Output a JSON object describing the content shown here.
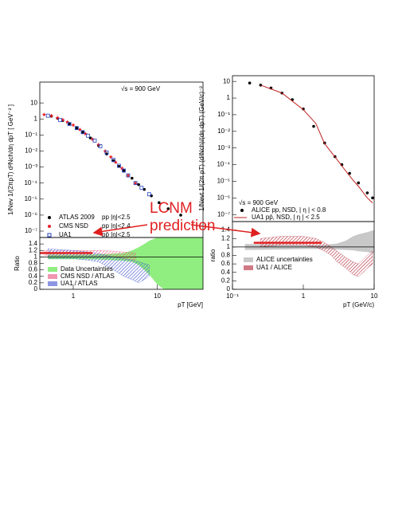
{
  "annotation": {
    "lines": [
      "LCNM",
      "prediction"
    ]
  },
  "chart_data": [
    {
      "type": "scatter",
      "xlog": true,
      "ylog": true,
      "xlim": [
        0.4,
        35
      ],
      "ylim": [
        4e-08,
        200
      ],
      "yticks": [
        10,
        1,
        {
          "value": 0.1,
          "label": "10⁻¹"
        },
        {
          "value": 0.01,
          "label": "10⁻²"
        },
        {
          "value": 0.001,
          "label": "10⁻³"
        },
        {
          "value": 0.0001,
          "label": "10⁻⁴"
        },
        {
          "value": 1e-05,
          "label": "10⁻⁵"
        },
        {
          "value": 1e-06,
          "label": "10⁻⁶"
        },
        {
          "value": 1e-07,
          "label": "10⁻⁷"
        }
      ],
      "ylabel": "1/Nev 1/(2πpT) d²Nch/dη dpT [ GeV⁻² ]",
      "note": "√s = 900 GeV",
      "series": [
        {
          "name": "ATLAS 2009",
          "selection": "pp |η|<2.5",
          "color": "#000000",
          "marker": "circle",
          "x": [
            0.55,
            0.65,
            0.75,
            0.9,
            1.1,
            1.3,
            1.6,
            2.0,
            2.5,
            3.0,
            3.5,
            4.0,
            5.0,
            6.0,
            7.0,
            8.5,
            10.5,
            13.5,
            19
          ],
          "values": [
            1.5,
            1.1,
            0.8,
            0.5,
            0.27,
            0.15,
            0.065,
            0.022,
            0.0065,
            0.0025,
            0.0011,
            0.0006,
            0.0002,
            8e-05,
            4e-05,
            1.6e-05,
            6e-06,
            2.5e-06,
            1e-06
          ]
        },
        {
          "name": "CMS NSD",
          "selection": "pp |η|<2.4",
          "color": "#e8202a",
          "marker": "star",
          "x": [
            0.45,
            0.55,
            0.65,
            0.75,
            0.85,
            1.0,
            1.2,
            1.4,
            1.7,
            2.0,
            2.4,
            2.8,
            3.2,
            3.8,
            4.5,
            5.5
          ],
          "values": [
            1.9,
            1.6,
            1.2,
            0.9,
            0.65,
            0.42,
            0.22,
            0.12,
            0.055,
            0.025,
            0.01,
            0.0043,
            0.002,
            0.00085,
            0.0003,
            0.0001
          ]
        },
        {
          "name": "UA1",
          "selection": "pp̄ |η|<2.5",
          "color": "#2040c0",
          "marker": "square",
          "x": [
            0.5,
            0.7,
            0.9,
            1.1,
            1.3,
            1.5,
            1.8,
            2.1,
            2.5,
            3.0,
            3.5,
            4.0,
            4.5,
            5.5,
            6.5,
            8.0
          ],
          "values": [
            1.6,
            0.85,
            0.48,
            0.27,
            0.15,
            0.09,
            0.045,
            0.02,
            0.008,
            0.0028,
            0.0012,
            0.0006,
            0.0003,
            0.0001,
            5e-05,
            2e-05
          ]
        }
      ]
    },
    {
      "type": "band",
      "xlog": true,
      "xlim": [
        0.4,
        35
      ],
      "ylim": [
        0,
        1.6
      ],
      "xticks": [
        1,
        10
      ],
      "yticks": [
        0,
        0.2,
        0.4,
        0.6,
        0.8,
        1,
        1.2,
        1.4
      ],
      "ylabel": "Ratio",
      "xlabel": "pT [GeV]",
      "reference_line": 1,
      "series": [
        {
          "name": "Data Uncertainties",
          "color": "#90ee80",
          "hatch": false,
          "x": [
            0.5,
            1,
            2,
            3,
            4,
            5,
            6,
            7,
            8,
            9,
            10,
            12,
            20,
            35
          ],
          "lower": [
            0.93,
            0.93,
            0.92,
            0.9,
            0.88,
            0.85,
            0.75,
            0.6,
            0.45,
            0.3,
            0.15,
            0,
            0,
            0
          ],
          "upper": [
            1.07,
            1.07,
            1.08,
            1.1,
            1.12,
            1.2,
            1.3,
            1.4,
            1.5,
            1.55,
            1.6,
            1.6,
            1.6,
            1.6
          ]
        },
        {
          "name": "CMS NSD / ATLAS",
          "color": "#e8507a",
          "hatch": true,
          "x": [
            0.45,
            1,
            2,
            3,
            4,
            5.5
          ],
          "lower": [
            1.05,
            1.05,
            1.03,
            1.0,
            0.95,
            0.9
          ],
          "upper": [
            1.2,
            1.2,
            1.2,
            1.18,
            1.15,
            1.12
          ]
        },
        {
          "name": "UA1 / ATLAS",
          "color": "#4050d0",
          "hatch": true,
          "x": [
            0.5,
            1,
            1.5,
            2,
            3,
            4,
            5,
            6,
            7,
            8
          ],
          "lower": [
            0.95,
            0.95,
            0.9,
            0.85,
            0.6,
            0.4,
            0.3,
            0.2,
            0.3,
            0.4
          ],
          "upper": [
            1.25,
            1.2,
            1.15,
            1.1,
            1.0,
            0.95,
            0.9,
            0.85,
            0.8,
            0.75
          ]
        }
      ],
      "prediction": {
        "color": "#e02020",
        "x": [
          0.4,
          1.7
        ],
        "values": [
          1.12,
          1.12
        ]
      }
    },
    {
      "type": "scatter",
      "xlog": true,
      "ylog": true,
      "xlim": [
        0.1,
        10
      ],
      "ylim": [
        3.8e-08,
        22
      ],
      "yticks": [
        10,
        1,
        {
          "value": 0.1,
          "label": "10⁻¹"
        },
        {
          "value": 0.01,
          "label": "10⁻²"
        },
        {
          "value": 0.001,
          "label": "10⁻³"
        },
        {
          "value": 0.0001,
          "label": "10⁻⁴"
        },
        {
          "value": 1e-05,
          "label": "10⁻⁵"
        },
        {
          "value": 1e-06,
          "label": "10⁻⁶"
        },
        {
          "value": 1e-07,
          "label": "10⁻⁷"
        }
      ],
      "ylabel": "1/Nevt 1/(2π pT) (d²Nch)/(dη dpT) (GeV/c)⁻²",
      "note": "√s = 900 GeV",
      "series": [
        {
          "name": "ALICE pp, NSD, | η | < 0.8",
          "color": "#000000",
          "marker": "circle",
          "x": [
            0.175,
            0.25,
            0.35,
            0.5,
            0.7,
            1.0,
            1.4,
            2.0,
            2.8,
            3.5,
            4.5,
            6.0,
            8.0,
            9.5
          ],
          "values": [
            8,
            6,
            4,
            2,
            0.8,
            0.22,
            0.02,
            0.002,
            0.0003,
            0.0001,
            3e-05,
            8e-06,
            2e-06,
            1e-06
          ]
        },
        {
          "name": "UA1 pp̄, NSD, | η | < 2.5",
          "color": "#c02020",
          "marker": "line",
          "x": [
            0.25,
            0.5,
            1.0,
            1.5,
            2.0,
            3.0,
            4.0,
            5.0,
            6.0,
            8.0,
            9.5
          ],
          "values": [
            6,
            2,
            0.2,
            0.03,
            0.0018,
            0.0002,
            4e-05,
            1.2e-05,
            5e-06,
            1e-06,
            5e-07
          ]
        }
      ]
    },
    {
      "type": "band",
      "xlog": true,
      "xlim": [
        0.1,
        10
      ],
      "ylim": [
        0,
        1.6
      ],
      "xticks": [
        {
          "value": 0.1,
          "label": "10⁻¹"
        },
        1,
        10
      ],
      "yticks": [
        0,
        0.2,
        0.4,
        0.6,
        0.8,
        1,
        1.2,
        1.4
      ],
      "ylabel": "ratio",
      "xlabel": "pT (GeV/c)",
      "reference_line": 1,
      "series": [
        {
          "name": "ALICE uncertainties",
          "color": "#c8c8c8",
          "hatch": false,
          "x": [
            0.15,
            0.5,
            1,
            2,
            3,
            4,
            5,
            6,
            8,
            10
          ],
          "lower": [
            0.93,
            0.94,
            0.95,
            0.95,
            0.94,
            0.93,
            0.92,
            0.9,
            0.88,
            0.85
          ],
          "upper": [
            1.07,
            1.06,
            1.05,
            1.05,
            1.08,
            1.15,
            1.25,
            1.3,
            1.35,
            1.4
          ]
        },
        {
          "name": "UA1 / ALICE",
          "color": "#b02030",
          "hatch": true,
          "x": [
            0.25,
            0.5,
            1,
            1.5,
            2,
            2.5,
            3,
            4,
            5,
            6,
            7,
            8,
            9.5
          ],
          "lower": [
            1.0,
            1.05,
            1.05,
            1.0,
            0.9,
            0.8,
            0.65,
            0.5,
            0.35,
            0.3,
            0.4,
            0.5,
            0.6
          ],
          "upper": [
            1.2,
            1.25,
            1.25,
            1.2,
            1.1,
            1.0,
            0.9,
            0.75,
            0.65,
            0.6,
            0.7,
            0.8,
            0.9
          ]
        }
      ],
      "prediction": {
        "color": "#e02020",
        "x": [
          0.2,
          1.8
        ],
        "values": [
          1.1,
          1.1
        ]
      }
    }
  ]
}
